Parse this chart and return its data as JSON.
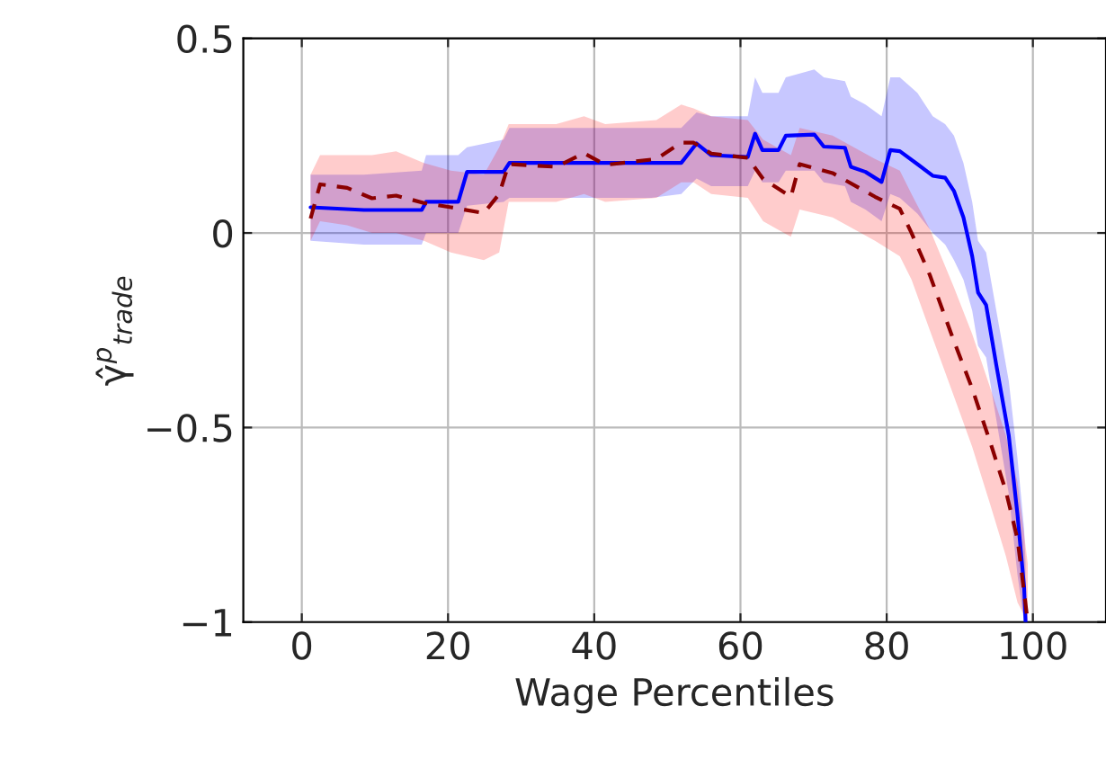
{
  "chart_data": {
    "type": "line",
    "xlabel": "Wage Percentiles",
    "ylabel": "γ̂$^{p}$$_{trade}$",
    "xlim": [
      -8,
      110
    ],
    "xticks": [
      0,
      20,
      40,
      60,
      80,
      100
    ],
    "ylim": [
      -1,
      0.5
    ],
    "yticks": [
      {
        "value": -1,
        "label": "−1"
      },
      {
        "value": -0.5,
        "label": "−0.5"
      },
      0,
      0.5
    ],
    "grid": true,
    "legend": false,
    "series": [
      {
        "color": "#0000ff",
        "line_style": "solid",
        "x": [
          1.2,
          8.5,
          16.4,
          17,
          21.4,
          22.6,
          27.6,
          28.4,
          47.8,
          51.9,
          54,
          56,
          61,
          62,
          63,
          65.2,
          66.2,
          70.1,
          71.4,
          74.3,
          75.1,
          77.1,
          79.3,
          80.5,
          81.8,
          84.2,
          86.3,
          88,
          89.2,
          90.5,
          91.7,
          92.5,
          93.6,
          95,
          96.7,
          97.9,
          98.8,
          99
        ],
        "values": [
          0.066,
          0.059,
          0.059,
          0.08,
          0.08,
          0.157,
          0.157,
          0.18,
          0.18,
          0.18,
          0.23,
          0.2,
          0.195,
          0.255,
          0.213,
          0.213,
          0.25,
          0.253,
          0.222,
          0.219,
          0.17,
          0.157,
          0.131,
          0.213,
          0.21,
          0.177,
          0.147,
          0.142,
          0.108,
          0.04,
          -0.06,
          -0.153,
          -0.185,
          -0.34,
          -0.52,
          -0.725,
          -0.91,
          -1
        ],
        "lower": [
          -0.02,
          -0.03,
          -0.03,
          0.0,
          0.0,
          0.07,
          0.08,
          0.09,
          0.09,
          0.1,
          0.14,
          0.12,
          0.12,
          0.16,
          0.13,
          0.13,
          0.16,
          0.16,
          0.13,
          0.12,
          0.08,
          0.06,
          0.03,
          0.1,
          0.09,
          0.05,
          0.0,
          -0.03,
          -0.07,
          -0.12,
          -0.2,
          -0.29,
          -0.32,
          -0.48,
          -0.67,
          -0.88,
          -1,
          -1
        ],
        "upper": [
          0.15,
          0.15,
          0.16,
          0.2,
          0.2,
          0.22,
          0.24,
          0.27,
          0.27,
          0.27,
          0.31,
          0.3,
          0.3,
          0.4,
          0.36,
          0.36,
          0.4,
          0.42,
          0.4,
          0.39,
          0.35,
          0.33,
          0.3,
          0.4,
          0.4,
          0.36,
          0.3,
          0.28,
          0.25,
          0.18,
          0.08,
          -0.02,
          -0.05,
          -0.2,
          -0.38,
          -0.58,
          -0.76,
          -0.85
        ]
      },
      {
        "color": "#8b0000",
        "line_style": "dashed",
        "x": [
          1.2,
          2.5,
          6.2,
          9.6,
          12.9,
          16.7,
          20.4,
          24.9,
          27,
          28.3,
          34.8,
          38.6,
          41.5,
          48.5,
          51.9,
          53.6,
          56,
          61,
          63.1,
          66.9,
          68.1,
          72.6,
          78.4,
          81.8,
          83.4,
          85.9,
          89.2,
          91.7,
          94.2,
          96.3,
          97.9,
          99.3
        ],
        "values": [
          0.037,
          0.125,
          0.116,
          0.089,
          0.096,
          0.077,
          0.066,
          0.051,
          0.1,
          0.177,
          0.17,
          0.205,
          0.175,
          0.19,
          0.232,
          0.232,
          0.204,
          0.193,
          0.139,
          0.093,
          0.177,
          0.154,
          0.093,
          0.062,
          0,
          -0.108,
          -0.278,
          -0.4,
          -0.54,
          -0.663,
          -0.787,
          -1
        ],
        "lower": [
          -0.02,
          0.03,
          0.02,
          0.0,
          0.0,
          -0.02,
          -0.05,
          -0.07,
          -0.05,
          0.08,
          0.08,
          0.1,
          0.08,
          0.09,
          0.13,
          0.13,
          0.1,
          0.09,
          0.03,
          -0.01,
          0.06,
          0.04,
          -0.02,
          -0.06,
          -0.12,
          -0.25,
          -0.42,
          -0.55,
          -0.7,
          -0.83,
          -0.95,
          -1
        ],
        "upper": [
          0.15,
          0.2,
          0.2,
          0.2,
          0.21,
          0.18,
          0.16,
          0.15,
          0.22,
          0.28,
          0.28,
          0.3,
          0.28,
          0.29,
          0.33,
          0.32,
          0.3,
          0.29,
          0.24,
          0.2,
          0.27,
          0.25,
          0.19,
          0.16,
          0.1,
          0.01,
          -0.14,
          -0.26,
          -0.4,
          -0.52,
          -0.64,
          -0.85
        ]
      }
    ]
  }
}
